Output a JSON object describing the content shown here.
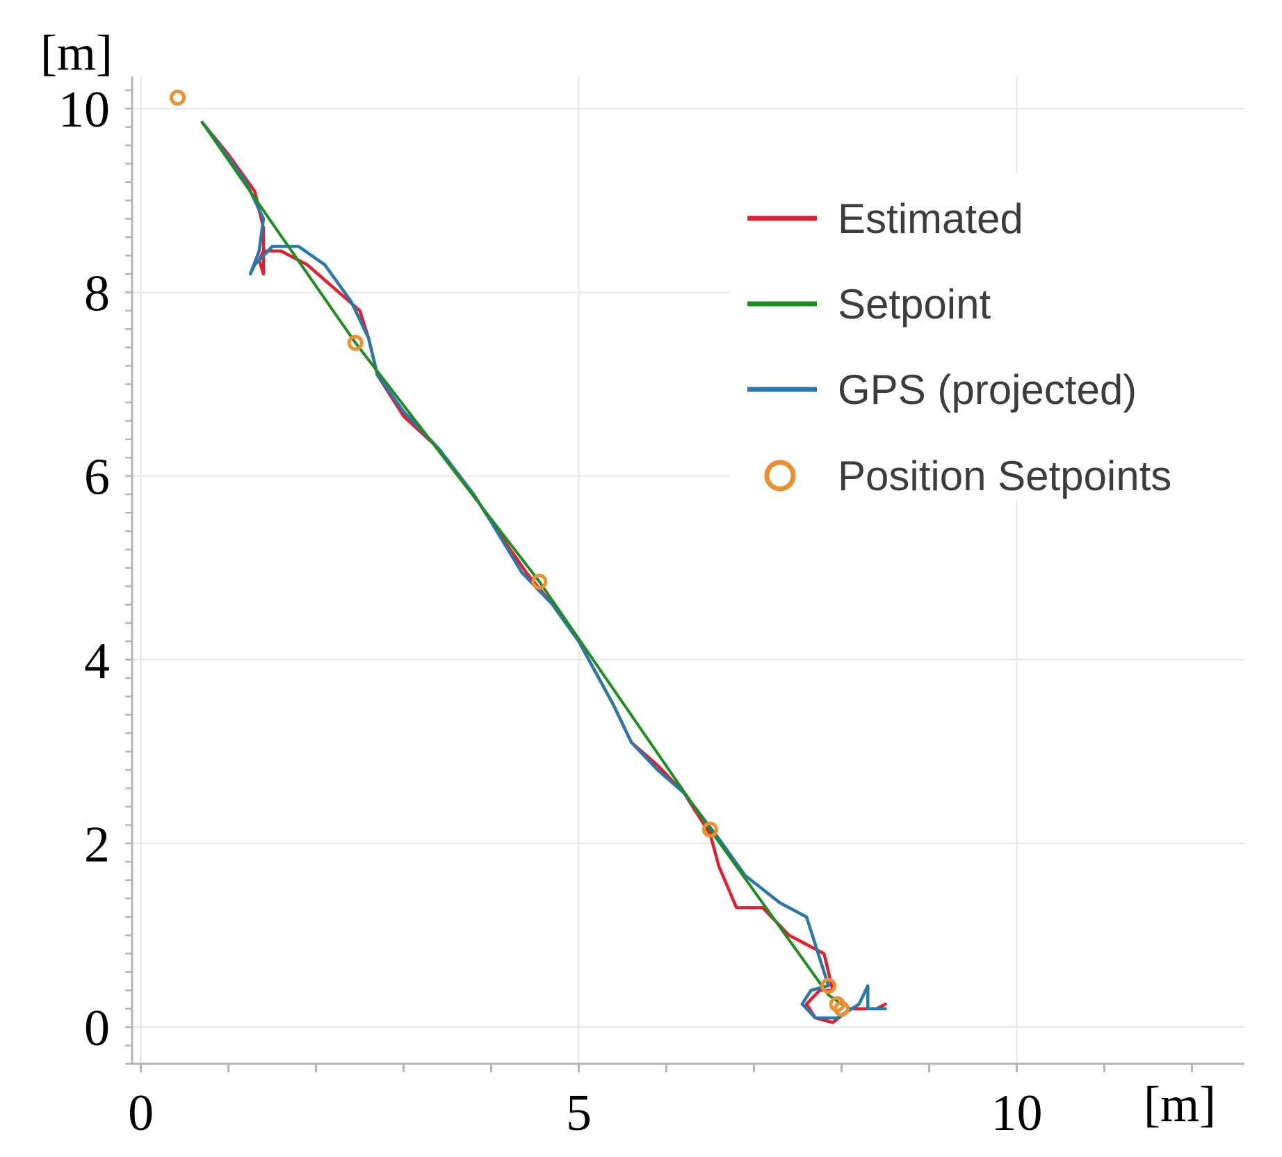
{
  "chart_data": {
    "type": "line",
    "xlabel": "[m]",
    "ylabel": "[m]",
    "xlim": [
      -0.1,
      12.6
    ],
    "ylim": [
      -0.4,
      10.35
    ],
    "x_ticks": [
      {
        "value": 0,
        "label": "0"
      },
      {
        "value": 5,
        "label": "5"
      },
      {
        "value": 10,
        "label": "10"
      }
    ],
    "y_ticks": [
      {
        "value": 0,
        "label": "0"
      },
      {
        "value": 2,
        "label": "2"
      },
      {
        "value": 4,
        "label": "4"
      },
      {
        "value": 6,
        "label": "6"
      },
      {
        "value": 8,
        "label": "8"
      },
      {
        "value": 10,
        "label": "10"
      }
    ],
    "x_minor_step": 1,
    "y_minor_step": 0.2,
    "grid": true,
    "legend_position": "top-right",
    "colors": {
      "estimated": "#e0202f",
      "setpoint": "#1f8c1f",
      "gps": "#2a78a8",
      "position_setpoints": "#eb9030",
      "grid": "#e6e6e6",
      "axis": "#b4b4b4"
    },
    "series": [
      {
        "name": "Estimated",
        "key": "estimated",
        "x": [
          0.7,
          1.0,
          1.3,
          1.4,
          1.4,
          1.35,
          1.4,
          1.6,
          1.9,
          2.2,
          2.5,
          2.6,
          2.7,
          3.0,
          3.4,
          3.8,
          4.0,
          4.4,
          4.7,
          5.0,
          5.4,
          5.6,
          5.9,
          6.2,
          6.5,
          6.6,
          6.8,
          7.1,
          7.4,
          7.8,
          7.9,
          7.75,
          7.6,
          7.7,
          7.9,
          8.1,
          8.4,
          8.5
        ],
        "y": [
          9.85,
          9.5,
          9.1,
          8.7,
          8.2,
          8.35,
          8.45,
          8.45,
          8.3,
          8.05,
          7.8,
          7.5,
          7.1,
          6.65,
          6.3,
          5.8,
          5.5,
          4.95,
          4.6,
          4.2,
          3.5,
          3.1,
          2.85,
          2.55,
          2.1,
          1.75,
          1.3,
          1.3,
          1.0,
          0.8,
          0.4,
          0.4,
          0.25,
          0.1,
          0.05,
          0.2,
          0.2,
          0.25
        ]
      },
      {
        "name": "Setpoint",
        "key": "setpoint",
        "x": [
          0.7,
          2.45,
          4.55,
          6.5,
          7.85,
          8.0
        ],
        "y": [
          9.85,
          7.45,
          4.85,
          2.15,
          0.35,
          0.25
        ]
      },
      {
        "name": "GPS (projected)",
        "key": "gps",
        "x": [
          0.7,
          0.9,
          1.2,
          1.4,
          1.35,
          1.25,
          1.3,
          1.5,
          1.8,
          2.1,
          2.4,
          2.6,
          2.7,
          3.0,
          3.4,
          3.8,
          4.0,
          4.35,
          4.7,
          5.0,
          5.4,
          5.6,
          5.9,
          6.2,
          6.6,
          6.9,
          7.3,
          7.6,
          7.85,
          7.65,
          7.55,
          7.7,
          7.95,
          8.2,
          8.3,
          8.3,
          8.5
        ],
        "y": [
          9.85,
          9.6,
          9.2,
          8.8,
          8.45,
          8.2,
          8.3,
          8.5,
          8.5,
          8.3,
          7.9,
          7.5,
          7.1,
          6.7,
          6.3,
          5.8,
          5.5,
          4.95,
          4.6,
          4.2,
          3.5,
          3.1,
          2.8,
          2.55,
          2.05,
          1.65,
          1.35,
          1.2,
          0.45,
          0.4,
          0.25,
          0.1,
          0.1,
          0.25,
          0.45,
          0.2,
          0.2
        ]
      }
    ],
    "position_setpoints": {
      "name": "Position Setpoints",
      "x": [
        0.42,
        2.45,
        4.55,
        6.5,
        7.85,
        7.95,
        8.0
      ],
      "y": [
        10.12,
        7.45,
        4.85,
        2.15,
        0.45,
        0.25,
        0.2
      ]
    }
  }
}
